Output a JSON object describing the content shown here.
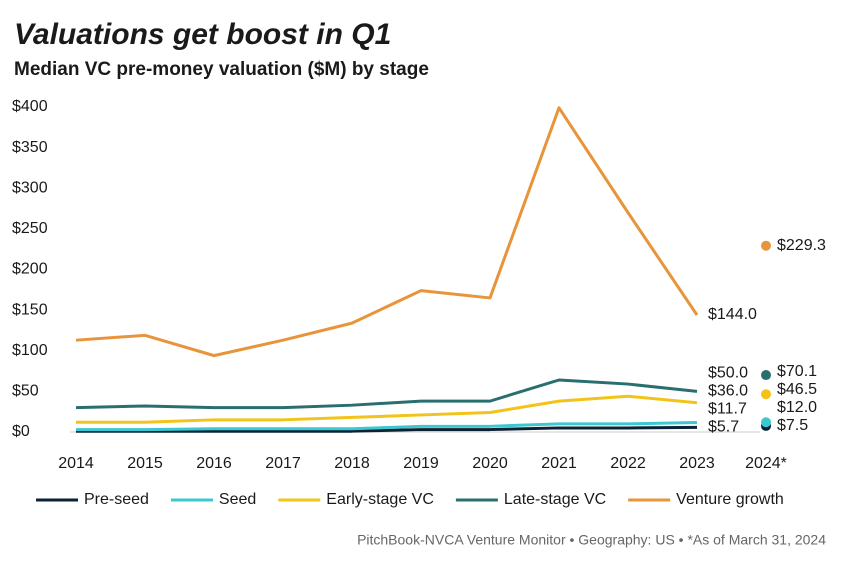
{
  "chart_data": {
    "type": "line",
    "title": "Valuations get boost in Q1",
    "subtitle": "Median VC pre-money valuation ($M) by stage",
    "source": "PitchBook-NVCA Venture Monitor  •  Geography: US  •  *As of March 31, 2024",
    "categories": [
      "2014",
      "2015",
      "2016",
      "2017",
      "2018",
      "2019",
      "2020",
      "2021",
      "2022",
      "2023",
      "2024*"
    ],
    "ylim": [
      0,
      400
    ],
    "yticks": [
      {
        "value": 0,
        "label": "$0"
      },
      {
        "value": 50,
        "label": "$50"
      },
      {
        "value": 100,
        "label": "$100"
      },
      {
        "value": 150,
        "label": "$150"
      },
      {
        "value": 200,
        "label": "$200"
      },
      {
        "value": 250,
        "label": "$250"
      },
      {
        "value": 300,
        "label": "$300"
      },
      {
        "value": 350,
        "label": "$350"
      },
      {
        "value": 400,
        "label": "$400"
      }
    ],
    "grid": false,
    "legend": "bottom",
    "series": [
      {
        "name": "Pre-seed",
        "color": "#0b2235",
        "values": [
          1,
          1,
          1,
          1,
          1,
          3,
          3,
          5,
          5,
          5.7,
          null
        ],
        "latest_values": [
          null,
          null,
          null,
          null,
          null,
          null,
          null,
          null,
          null,
          null,
          7.5
        ],
        "value_labels": [
          null,
          null,
          null,
          null,
          null,
          null,
          null,
          null,
          null,
          "$5.7",
          "$7.5"
        ]
      },
      {
        "name": "Seed",
        "color": "#3cc8d0",
        "values": [
          3,
          3,
          4,
          4,
          4,
          7,
          7,
          10,
          10,
          11.7,
          null
        ],
        "latest_values": [
          null,
          null,
          null,
          null,
          null,
          null,
          null,
          null,
          null,
          null,
          12.0
        ],
        "value_labels": [
          null,
          null,
          null,
          null,
          null,
          null,
          null,
          null,
          null,
          "$11.7",
          "$12.0"
        ]
      },
      {
        "name": "Early-stage VC",
        "color": "#f2c419",
        "values": [
          12,
          12,
          15,
          15,
          18,
          21,
          24,
          38,
          44,
          36.0,
          null
        ],
        "latest_values": [
          null,
          null,
          null,
          null,
          null,
          null,
          null,
          null,
          null,
          null,
          46.5
        ],
        "value_labels": [
          null,
          null,
          null,
          null,
          null,
          null,
          null,
          null,
          null,
          "$36.0",
          "$46.5"
        ]
      },
      {
        "name": "Late-stage VC",
        "color": "#2a6f70",
        "values": [
          30,
          32,
          30,
          30,
          33,
          38,
          38,
          64,
          59,
          50.0,
          null
        ],
        "latest_values": [
          null,
          null,
          null,
          null,
          null,
          null,
          null,
          null,
          null,
          null,
          70.1
        ],
        "value_labels": [
          null,
          null,
          null,
          null,
          null,
          null,
          null,
          null,
          null,
          "$50.0",
          "$70.1"
        ]
      },
      {
        "name": "Venture growth",
        "color": "#e8943a",
        "values": [
          113,
          119,
          94,
          113,
          134,
          174,
          165,
          399,
          270,
          144.0,
          null
        ],
        "latest_values": [
          null,
          null,
          null,
          null,
          null,
          null,
          null,
          null,
          null,
          null,
          229.3
        ],
        "value_labels": [
          null,
          null,
          null,
          null,
          null,
          null,
          null,
          null,
          null,
          "$144.0",
          "$229.3"
        ]
      }
    ]
  }
}
